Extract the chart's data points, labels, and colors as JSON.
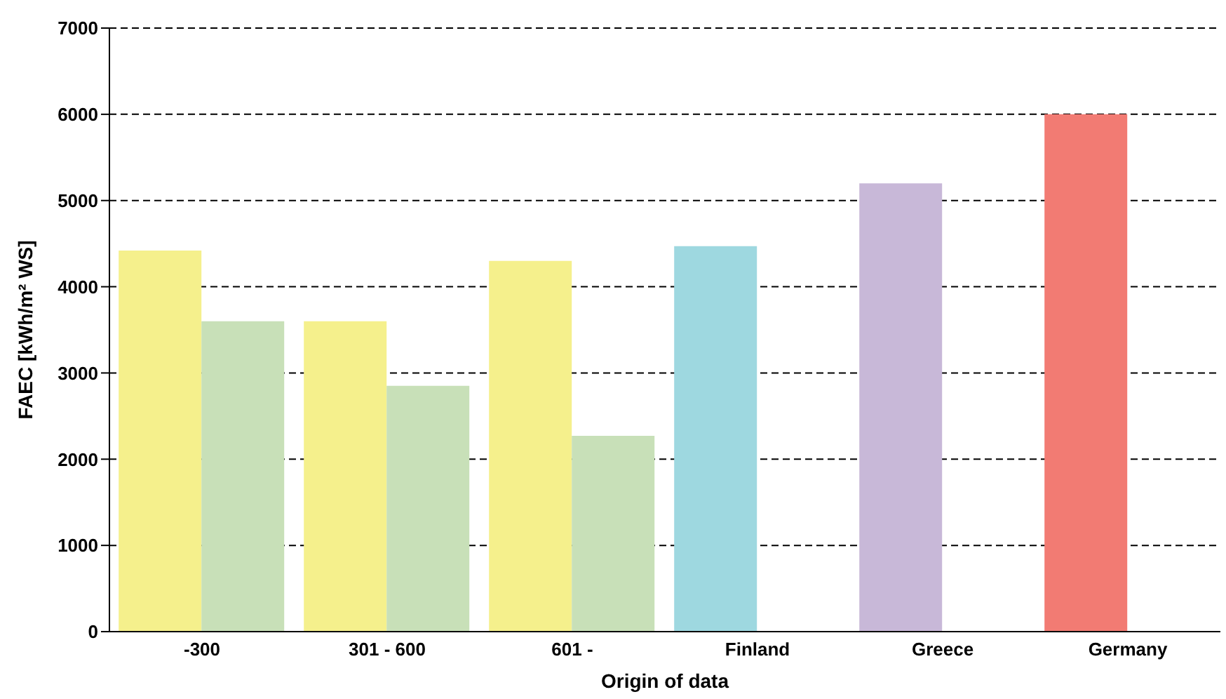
{
  "chart_data": {
    "type": "bar",
    "xlabel": "Origin of data",
    "ylabel": "FAEC [kWh/m² WS]",
    "categories": [
      "-300",
      "301 - 600",
      "601 -",
      "Finland",
      "Greece",
      "Germany"
    ],
    "series": [
      {
        "color": "#f5f08c",
        "colors": [
          "#f5f08c",
          "#f5f08c",
          "#f5f08c",
          "#9ed8e0",
          "#c8b8d8",
          "#f27b73"
        ],
        "values": [
          4420,
          3600,
          4300,
          4470,
          5200,
          6000
        ]
      },
      {
        "color": "#c8e0b8",
        "values": [
          3600,
          2850,
          2270,
          null,
          null,
          null
        ]
      }
    ],
    "ylim": [
      0,
      7000
    ],
    "yticks": [
      0,
      1000,
      2000,
      3000,
      4000,
      5000,
      6000,
      7000
    ],
    "grid": "y",
    "legend": false
  }
}
